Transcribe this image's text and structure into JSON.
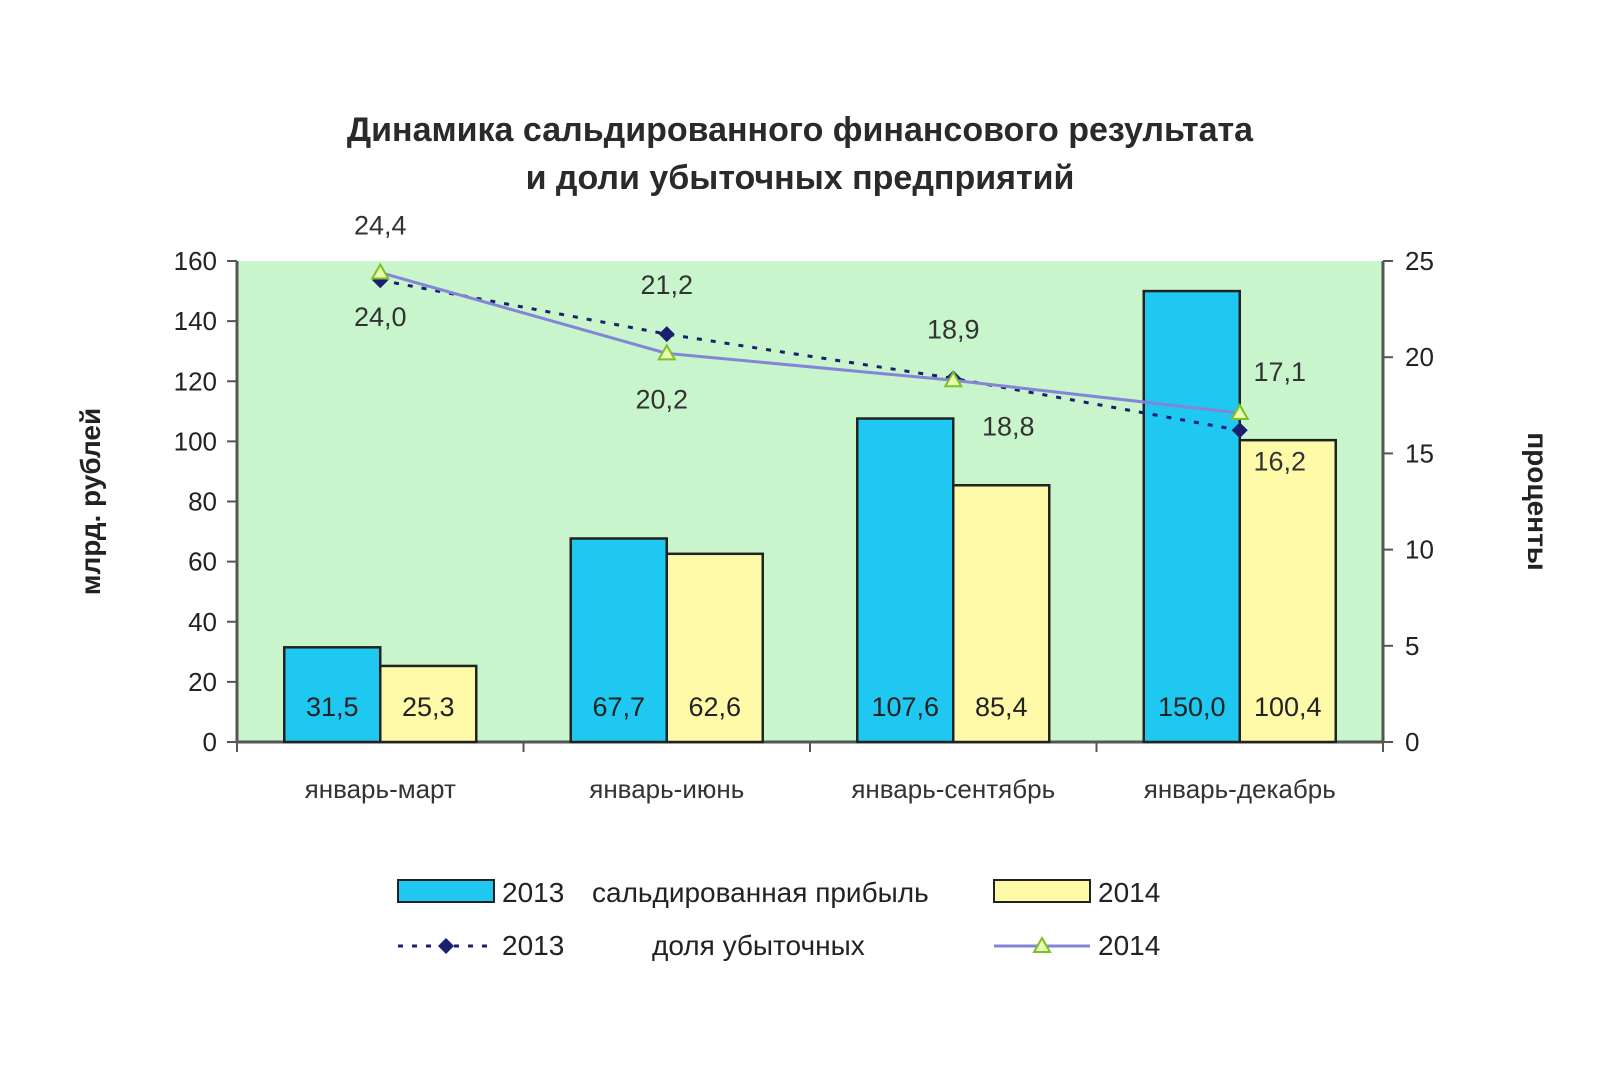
{
  "chart_data": {
    "type": "bar",
    "title_line1": "Динамика сальдированного финансового результата",
    "title_line2": "и доли убыточных предприятий",
    "categories": [
      "январь-март",
      "январь-июнь",
      "январь-сентябрь",
      "январь-декабрь"
    ],
    "y_left_label": "млрд. рублей",
    "y_right_label": "проценты",
    "y_left_lim": [
      0,
      160
    ],
    "y_left_ticks": [
      0,
      20,
      40,
      60,
      80,
      100,
      120,
      140,
      160
    ],
    "y_right_lim": [
      0,
      25
    ],
    "y_right_ticks": [
      0,
      5,
      10,
      15,
      20,
      25
    ],
    "bar_series": [
      {
        "name": "2013",
        "color": "#1ec8f0",
        "values": [
          31.5,
          67.7,
          107.6,
          150.0
        ],
        "labels": [
          "31,5",
          "67,7",
          "107,6",
          "150,0"
        ]
      },
      {
        "name": "2014",
        "color": "#fffaa8",
        "values": [
          25.3,
          62.6,
          85.4,
          100.4
        ],
        "labels": [
          "25,3",
          "62,6",
          "85,4",
          "100,4"
        ]
      }
    ],
    "line_series": [
      {
        "name": "2013",
        "color": "#1a1f6e",
        "style": "dotted",
        "marker": "diamond",
        "values": [
          24.0,
          21.2,
          18.9,
          16.2
        ],
        "labels": [
          "24,0",
          "21,2",
          "18,9",
          "16,2"
        ]
      },
      {
        "name": "2014",
        "color": "#8585d8",
        "style": "solid",
        "marker": "triangle",
        "values": [
          24.4,
          20.2,
          18.8,
          17.1
        ],
        "labels": [
          "24,4",
          "20,2",
          "18,8",
          "17,1"
        ]
      }
    ],
    "legend": {
      "bars_caption": "сальдированная прибыль",
      "lines_caption": "доля убыточных"
    },
    "plot_background": "#c8f5cc"
  }
}
